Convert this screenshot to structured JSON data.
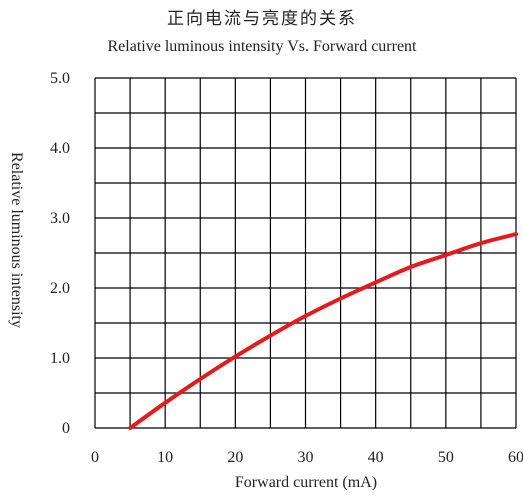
{
  "chart_data": {
    "type": "line",
    "title": "正向电流与亮度的关系",
    "subtitle": "Relative luminous intensity Vs. Forward current",
    "xlabel": "Forward current (mA)",
    "ylabel": "Relative luminous intensity",
    "xlim": [
      0,
      60
    ],
    "ylim": [
      0,
      5.0
    ],
    "x_ticks": [
      0,
      10,
      20,
      30,
      40,
      50,
      60
    ],
    "x_tick_labels": [
      "0",
      "10",
      "20",
      "30",
      "40",
      "50",
      "60"
    ],
    "y_ticks": [
      0,
      1.0,
      2.0,
      3.0,
      4.0,
      5.0
    ],
    "y_tick_labels": [
      "0",
      "1.0",
      "2.0",
      "3.0",
      "4.0",
      "5.0"
    ],
    "x_gridlines": [
      0,
      5,
      10,
      15,
      20,
      25,
      30,
      35,
      40,
      45,
      50,
      55,
      60
    ],
    "y_gridlines": [
      0,
      0.5,
      1.0,
      1.5,
      2.0,
      2.5,
      3.0,
      3.5,
      4.0,
      4.5,
      5.0
    ],
    "grid": true,
    "series": [
      {
        "color": "#e8191b",
        "x": [
          5,
          10,
          15,
          20,
          25,
          30,
          35,
          40,
          45,
          50,
          55,
          60
        ],
        "y": [
          0.0,
          0.36,
          0.7,
          1.02,
          1.32,
          1.6,
          1.85,
          2.08,
          2.3,
          2.47,
          2.64,
          2.77
        ]
      }
    ]
  }
}
